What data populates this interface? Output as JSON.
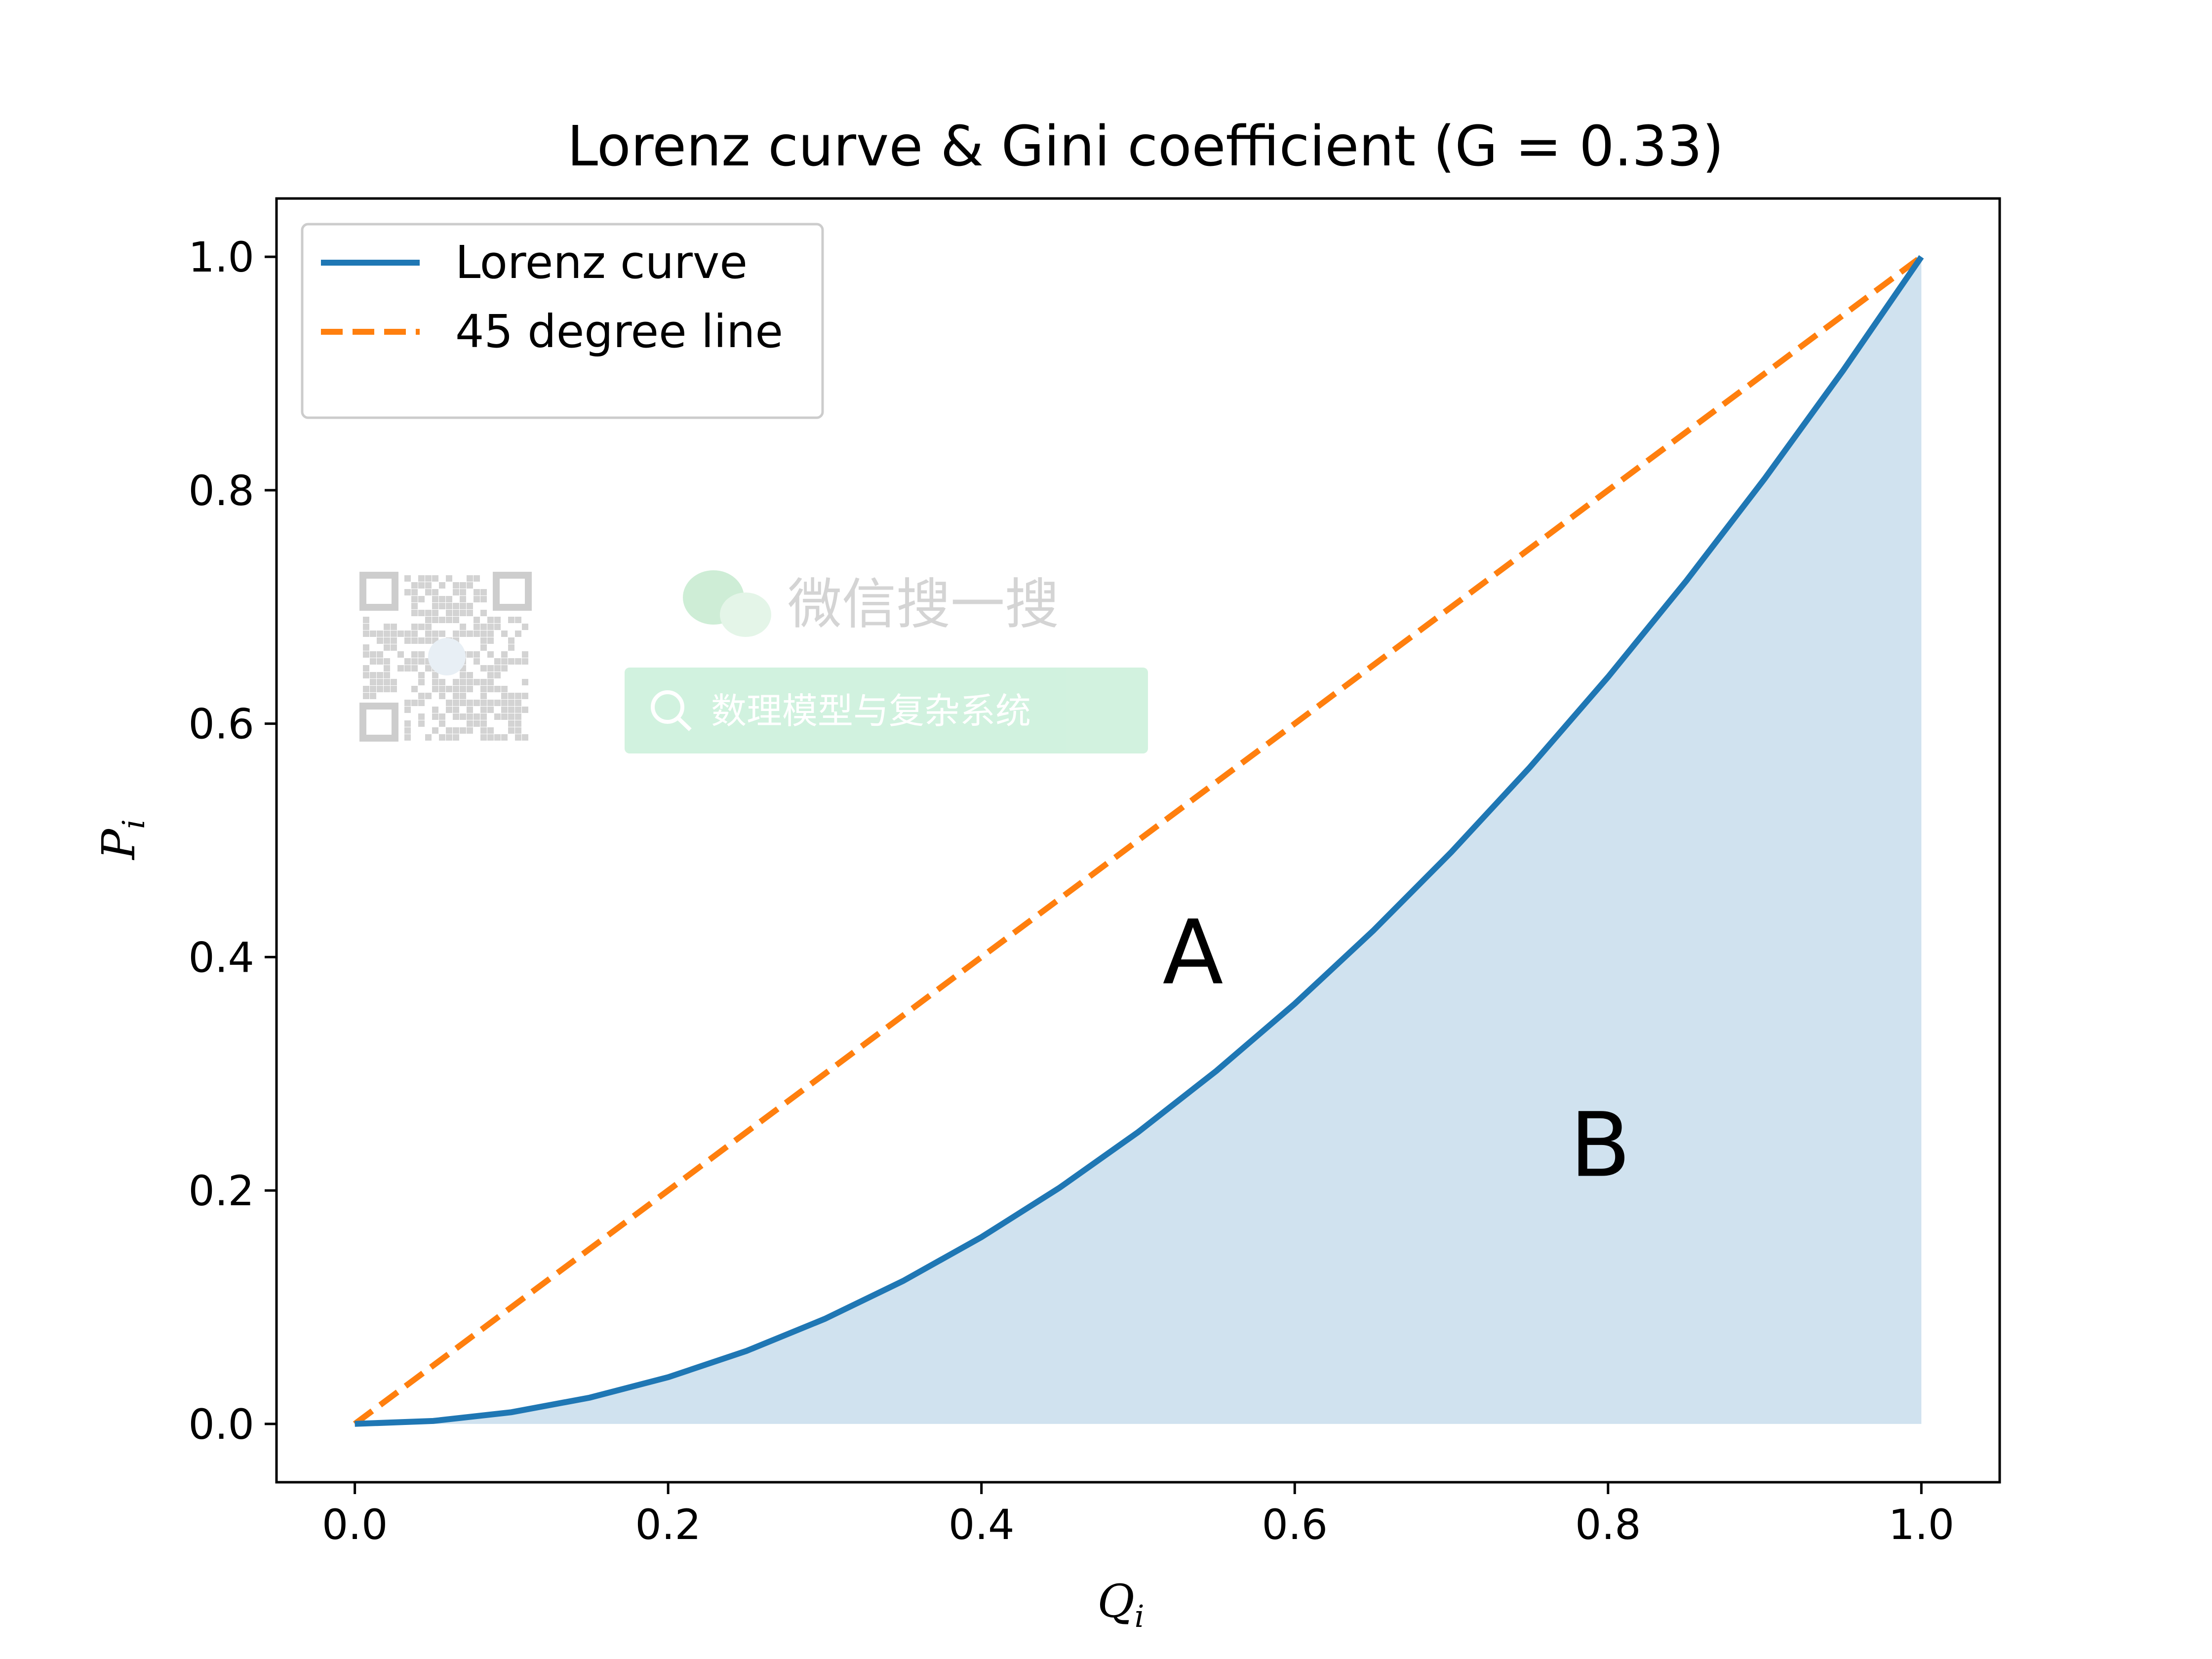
{
  "chart_data": {
    "type": "area",
    "title": "Lorenz curve & Gini coefficient (G = 0.33)",
    "xlabel": "Q",
    "xlabel_sub": "i",
    "ylabel": "P",
    "ylabel_sub": "i",
    "xlim": [
      -0.05,
      1.05
    ],
    "ylim": [
      -0.05,
      1.05
    ],
    "xticks": [
      "0.0",
      "0.2",
      "0.4",
      "0.6",
      "0.8",
      "1.0"
    ],
    "yticks": [
      "0.0",
      "0.2",
      "0.4",
      "0.6",
      "0.8",
      "1.0"
    ],
    "grid": false,
    "legend_position": "upper-left",
    "series": [
      {
        "name": "Lorenz curve",
        "style": "solid",
        "color": "#1f77b4",
        "fill_below": true,
        "fill_color": "#d0e2ef",
        "x": [
          0.0,
          0.05,
          0.1,
          0.15,
          0.2,
          0.25,
          0.3,
          0.35,
          0.4,
          0.45,
          0.5,
          0.55,
          0.6,
          0.65,
          0.7,
          0.75,
          0.8,
          0.85,
          0.9,
          0.95,
          1.0
        ],
        "y": [
          0.0,
          0.0025,
          0.01,
          0.0225,
          0.04,
          0.0625,
          0.09,
          0.1225,
          0.16,
          0.2025,
          0.25,
          0.3025,
          0.36,
          0.4225,
          0.49,
          0.5625,
          0.64,
          0.7225,
          0.81,
          0.9025,
          1.0
        ]
      },
      {
        "name": "45 degree line",
        "style": "dashed",
        "color": "#ff7f0e",
        "x": [
          0.0,
          1.0
        ],
        "y": [
          0.0,
          1.0
        ]
      }
    ],
    "annotations": [
      {
        "text": "A",
        "x": 0.535,
        "y": 0.405
      },
      {
        "text": "B",
        "x": 0.795,
        "y": 0.24
      }
    ]
  },
  "watermark": {
    "label": "微信搜一搜",
    "search_text": "数理模型与复杂系统",
    "icons": [
      "qr-code-icon",
      "wechat-icon",
      "search-icon"
    ]
  }
}
